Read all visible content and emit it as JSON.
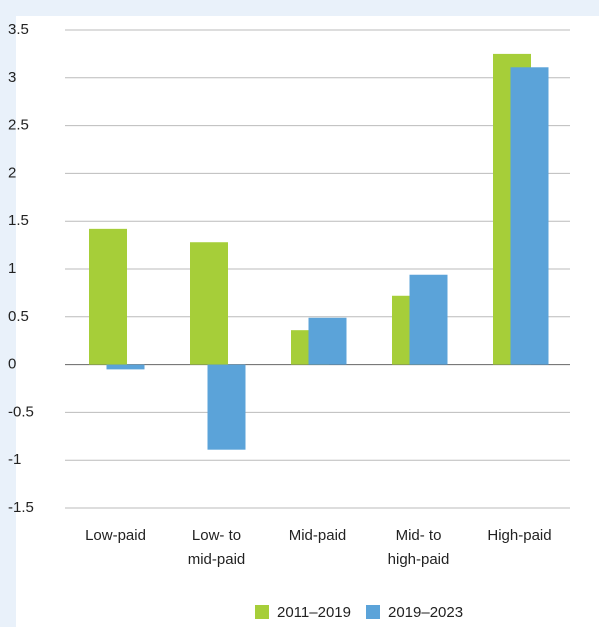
{
  "chart_data": {
    "type": "bar",
    "categories": [
      [
        "Low-paid"
      ],
      [
        "Low- to",
        "mid-paid"
      ],
      [
        "Mid-paid"
      ],
      [
        "Mid- to",
        "high-paid"
      ],
      [
        "High-paid"
      ]
    ],
    "series": [
      {
        "name": "2011–2019",
        "color": "#a6ce39",
        "values": [
          1.42,
          1.28,
          0.36,
          0.72,
          3.25
        ]
      },
      {
        "name": "2019–2023",
        "color": "#5ba3d9",
        "values": [
          -0.05,
          -0.89,
          0.49,
          0.94,
          3.11
        ]
      }
    ],
    "ylim": [
      -1.5,
      3.5
    ],
    "yticks": [
      -1.5,
      -1,
      -0.5,
      0,
      0.5,
      1,
      1.5,
      2,
      2.5,
      3,
      3.5
    ],
    "grid": true
  }
}
